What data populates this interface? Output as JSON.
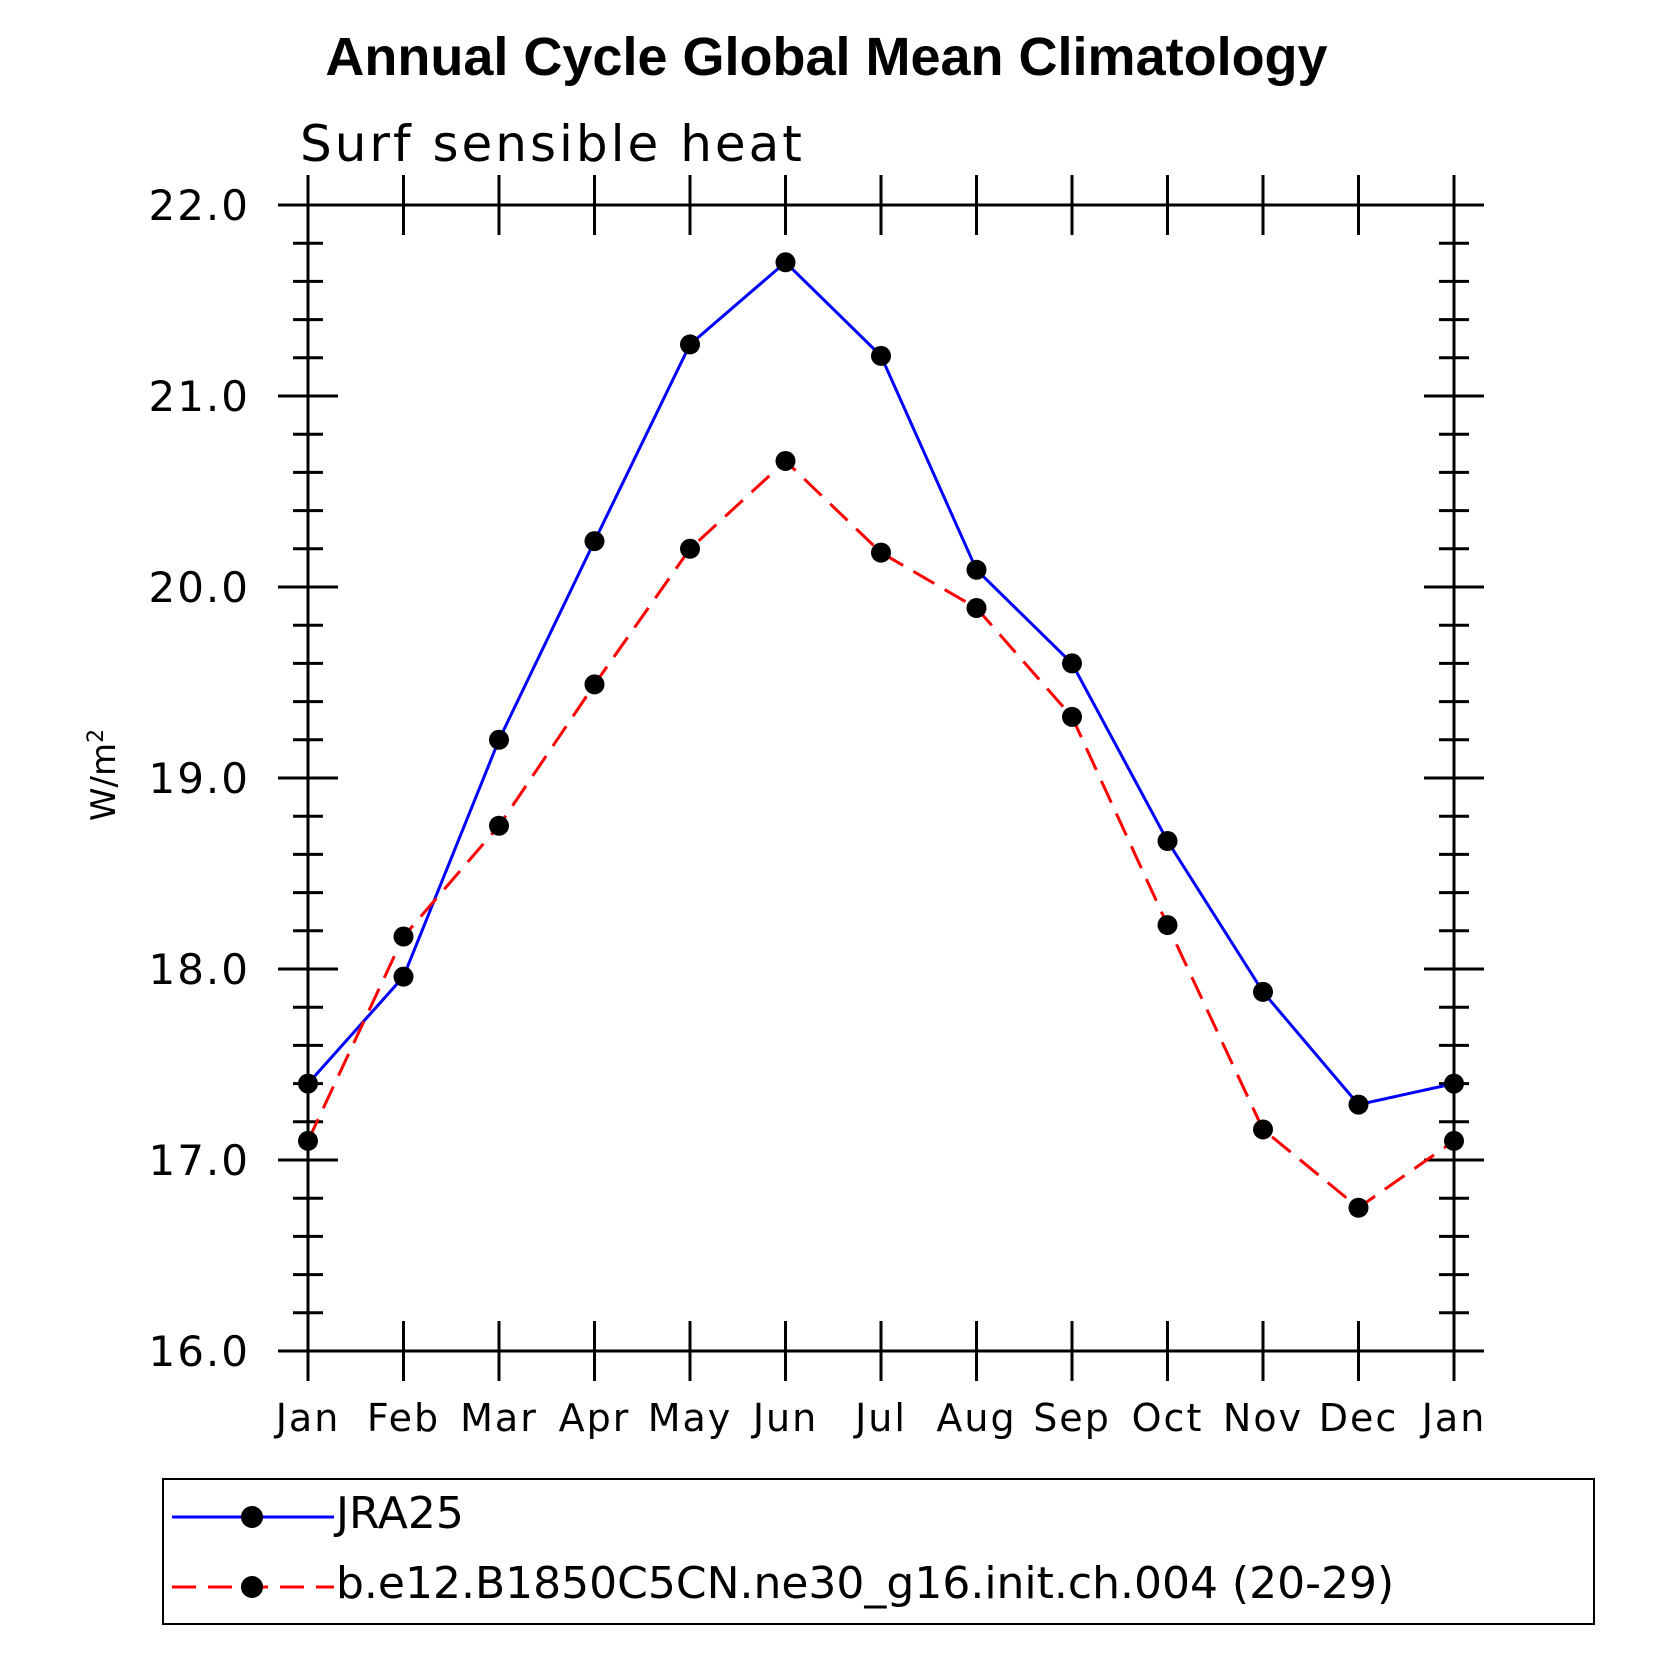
{
  "chart_data": {
    "type": "line",
    "title": "Annual Cycle Global Mean Climatology",
    "subtitle": "Surf sensible heat",
    "ylabel": "W/m",
    "ylabel_superscript": "2",
    "xlabel": "",
    "categories": [
      "Jan",
      "Feb",
      "Mar",
      "Apr",
      "May",
      "Jun",
      "Jul",
      "Aug",
      "Sep",
      "Oct",
      "Nov",
      "Dec",
      "Jan"
    ],
    "ylim": [
      16.0,
      22.0
    ],
    "yticks": [
      "16.0",
      "17.0",
      "18.0",
      "19.0",
      "20.0",
      "21.0",
      "22.0"
    ],
    "grid": false,
    "legend_position": "bottom",
    "series": [
      {
        "name": "JRA25",
        "color": "#0000ff",
        "line_style": "solid",
        "marker": "filled-circle",
        "values": [
          17.4,
          17.96,
          19.2,
          20.24,
          21.27,
          21.7,
          21.21,
          20.09,
          19.6,
          18.67,
          17.88,
          17.29,
          17.4
        ]
      },
      {
        "name": "b.e12.B1850C5CN.ne30_g16.init.ch.004 (20-29)",
        "color": "#ff0000",
        "line_style": "dashed",
        "marker": "filled-circle",
        "values": [
          17.1,
          18.17,
          18.75,
          19.49,
          20.2,
          20.66,
          20.18,
          19.89,
          19.32,
          18.23,
          17.16,
          16.75,
          17.1
        ]
      }
    ]
  }
}
